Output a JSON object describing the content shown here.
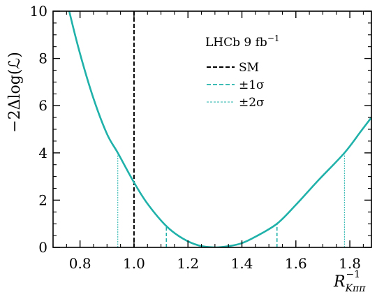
{
  "chart_data": {
    "type": "line",
    "xlabel": "R",
    "xlabel_sub": "Kππ",
    "xlabel_sup": "−1",
    "ylabel": "−2Δlog(ℒ)",
    "xlim": [
      0.7,
      1.88
    ],
    "ylim": [
      0,
      10
    ],
    "xticks": [
      0.8,
      1.0,
      1.2,
      1.4,
      1.6,
      1.8
    ],
    "xtick_labels": [
      "0.8",
      "1.0",
      "1.2",
      "1.4",
      "1.6",
      "1.8"
    ],
    "yticks": [
      0,
      2,
      4,
      6,
      8,
      10
    ],
    "ytick_labels": [
      "0",
      "2",
      "4",
      "6",
      "8",
      "10"
    ],
    "grid": false,
    "legend": {
      "placement": "top-right",
      "title": "LHCb 9 fb",
      "title_sup": "−1",
      "entries": [
        {
          "label": "SM",
          "style": "dashed",
          "color": "#000000"
        },
        {
          "label": "±1σ",
          "style": "dashed",
          "color": "#20b2aa"
        },
        {
          "label": "±2σ",
          "style": "dotted-thin",
          "color": "#20b2aa"
        }
      ]
    },
    "series": [
      {
        "color": "#20b2aa",
        "x": [
          0.7,
          0.76,
          0.8,
          0.85,
          0.9,
          0.94,
          1.0,
          1.05,
          1.12,
          1.18,
          1.24,
          1.3,
          1.35,
          1.4,
          1.45,
          1.53,
          1.6,
          1.68,
          1.78,
          1.84,
          1.88
        ],
        "y": [
          13.0,
          10.0,
          8.2,
          6.3,
          4.8,
          4.0,
          2.75,
          1.85,
          0.9,
          0.38,
          0.08,
          0.0,
          0.05,
          0.18,
          0.45,
          1.0,
          1.8,
          2.8,
          4.0,
          4.9,
          5.5
        ]
      }
    ],
    "reference_lines": [
      {
        "name": "SM",
        "x": 1.0,
        "color": "#000000",
        "style": "dashed"
      }
    ],
    "interval_markers": [
      {
        "name": "±1σ",
        "x": 1.12,
        "y": 0.9
      },
      {
        "name": "±1σ",
        "x": 1.53,
        "y": 1.0
      },
      {
        "name": "±2σ",
        "x": 0.94,
        "y": 4.0
      },
      {
        "name": "±2σ",
        "x": 1.78,
        "y": 4.0
      }
    ],
    "colors": {
      "curve": "#20b2aa",
      "sm": "#000000",
      "axes": "#000000"
    }
  }
}
